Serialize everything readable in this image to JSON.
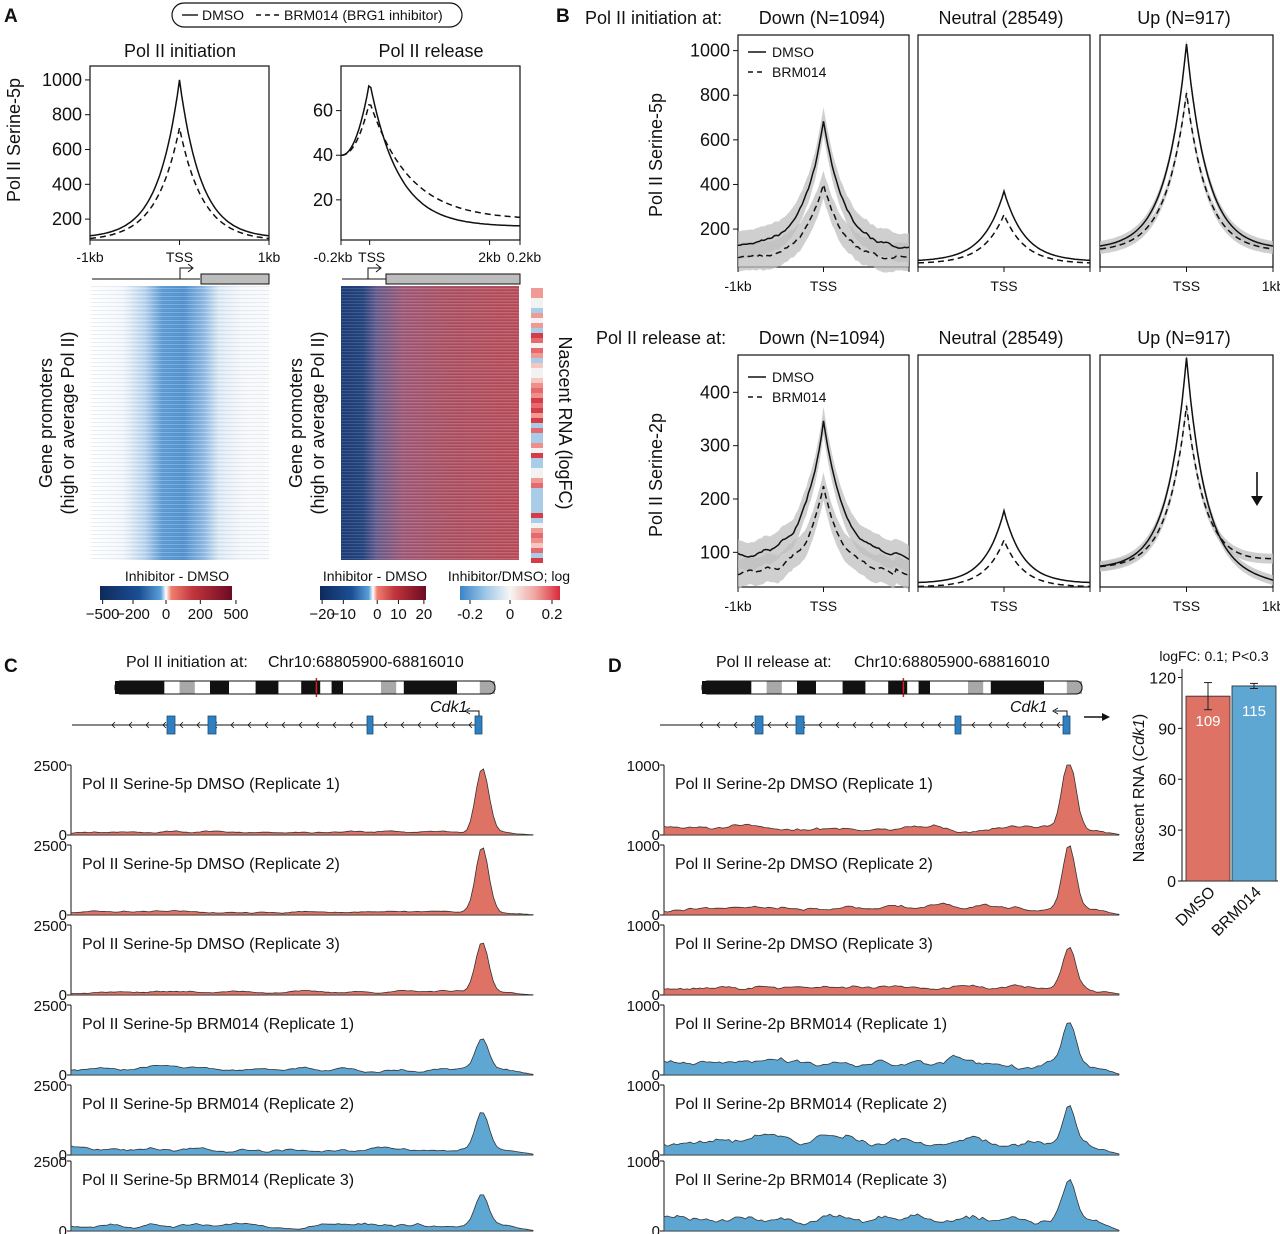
{
  "chart_data": {
    "legend": {
      "dmso": "DMSO",
      "brm": "BRM014 (BRG1 inhibitor)"
    },
    "panels": {
      "A": {
        "letter": "A",
        "ylabel": "Pol II Serine-5p",
        "init": {
          "type": "line",
          "title": "Pol II initiation",
          "xticks": [
            "-1kb",
            "TSS",
            "1kb"
          ],
          "yticks": [
            200,
            400,
            600,
            800,
            1000
          ],
          "ylim": [
            80,
            1080
          ],
          "dmso_peak": 1000,
          "dmso_base": 90,
          "brm_peak": 725,
          "brm_base": 75
        },
        "release": {
          "type": "line",
          "title": "Pol II release",
          "xticks": [
            "-0.2kb",
            "TSS",
            "2kb",
            "0.2kb"
          ],
          "yticks": [
            20,
            40,
            60
          ],
          "ylim": [
            2,
            80
          ],
          "dmso_peak": 73,
          "dmso_start": 40,
          "dmso_tail": 8,
          "brm_peak": 64,
          "brm_start": 40,
          "brm_tail": 11
        },
        "heatmap_ylabel": [
          "Gene promoters",
          "(high or average Pol II)"
        ],
        "nascent_label": "Nascent RNA (logFC)",
        "cb1": {
          "title": "Inhibitor - DMSO",
          "ticks": [
            "−500",
            "−200",
            "0",
            "200",
            "500"
          ]
        },
        "cb2": {
          "title": "Inhibitor - DMSO",
          "ticks": [
            "−20",
            "−10",
            "0",
            "10",
            "20"
          ]
        },
        "cb3": {
          "title": "Inhibitor/DMSO; log",
          "ticks": [
            "-0.2",
            "0",
            "0.2"
          ]
        }
      },
      "B": {
        "letter": "B",
        "row1_prefix": "Pol II initiation at:",
        "row2_prefix": "Pol II release at:",
        "titles": [
          "Down (N=1094)",
          "Neutral (28549)",
          "Up (N=917)"
        ],
        "ylabel1": "Pol II Serine-5p",
        "ylabel2": "Pol II Serine-2p",
        "xticks": [
          "-1kb",
          "TSS",
          "1kb"
        ],
        "legend_dmso": "DMSO",
        "legend_brm": "BRM014",
        "row1": {
          "yticks": [
            200,
            400,
            600,
            800,
            1000
          ],
          "ylim": [
            30,
            1070
          ],
          "series": [
            {
              "dmso_peak": 680,
              "dmso_base": 110,
              "brm_peak": 400,
              "brm_base": 60
            },
            {
              "dmso_peak": 370,
              "dmso_base": 55,
              "brm_peak": 265,
              "brm_base": 45
            },
            {
              "dmso_peak": 1030,
              "dmso_base": 110,
              "brm_peak": 810,
              "brm_base": 100
            }
          ]
        },
        "row2": {
          "yticks": [
            100,
            200,
            300,
            400
          ],
          "ylim": [
            35,
            470
          ],
          "series": [
            {
              "dmso_peak": 350,
              "dmso_base": 90,
              "brm_peak": 220,
              "brm_base": 60
            },
            {
              "dmso_peak": 178,
              "dmso_base": 42,
              "brm_peak": 123,
              "brm_base": 35
            },
            {
              "dmso_peak": 465,
              "dmso_base": 70,
              "brm_peak": 375,
              "brm_base": 70
            }
          ]
        }
      },
      "C": {
        "letter": "C",
        "locus_prefix": "Pol II initiation at:",
        "locus": "Chr10:68805900-68816010",
        "gene": "Cdk1",
        "ymax": "2500",
        "ymin": "0",
        "tracks": [
          {
            "label": "Pol II Serine-5p DMSO (Replicate 1)",
            "cond": "dmso",
            "peak": 0.92
          },
          {
            "label": "Pol II Serine-5p DMSO (Replicate 2)",
            "cond": "dmso",
            "peak": 0.93
          },
          {
            "label": "Pol II Serine-5p DMSO (Replicate 3)",
            "cond": "dmso",
            "peak": 0.72
          },
          {
            "label": "Pol II Serine-5p BRM014 (Replicate 1)",
            "cond": "brm",
            "peak": 0.48
          },
          {
            "label": "Pol II Serine-5p BRM014 (Replicate 2)",
            "cond": "brm",
            "peak": 0.54
          },
          {
            "label": "Pol II Serine-5p BRM014 (Replicate 3)",
            "cond": "brm",
            "peak": 0.45
          }
        ]
      },
      "D": {
        "letter": "D",
        "locus_prefix": "Pol II release at:",
        "locus": "Chr10:68805900-68816010",
        "gene": "Cdk1",
        "ymax": "1000",
        "ymin": "0",
        "tracks": [
          {
            "label": "Pol II Serine-2p DMSO (Replicate 1)",
            "cond": "dmso",
            "peak": 0.98
          },
          {
            "label": "Pol II Serine-2p DMSO (Replicate 2)",
            "cond": "dmso",
            "peak": 0.9
          },
          {
            "label": "Pol II Serine-2p DMSO (Replicate 3)",
            "cond": "dmso",
            "peak": 0.55
          },
          {
            "label": "Pol II Serine-2p BRM014 (Replicate 1)",
            "cond": "brm",
            "peak": 0.6
          },
          {
            "label": "Pol II Serine-2p BRM014 (Replicate 2)",
            "cond": "brm",
            "peak": 0.55
          },
          {
            "label": "Pol II Serine-2p BRM014 (Replicate 3)",
            "cond": "brm",
            "peak": 0.52
          }
        ]
      },
      "E": {
        "type": "bar",
        "title": "logFC: 0.1; P<0.3",
        "ylabel": "Nascent RNA (Cdk1)",
        "ylabel_main": "Nascent RNA (",
        "ylabel_gene": "Cdk1",
        "ylabel_end": ")",
        "categories": [
          "DMSO",
          "BRM014"
        ],
        "values": [
          109,
          115
        ],
        "errors": [
          8,
          1.5
        ],
        "yticks": [
          0,
          30,
          60,
          90,
          120
        ],
        "ylim": [
          0,
          125
        ]
      }
    }
  },
  "colors": {
    "dmso_fill": "#de7365",
    "brm_fill": "#5ea7d2",
    "gene": "#2f7fc1",
    "chr_mark": "#d22222"
  }
}
